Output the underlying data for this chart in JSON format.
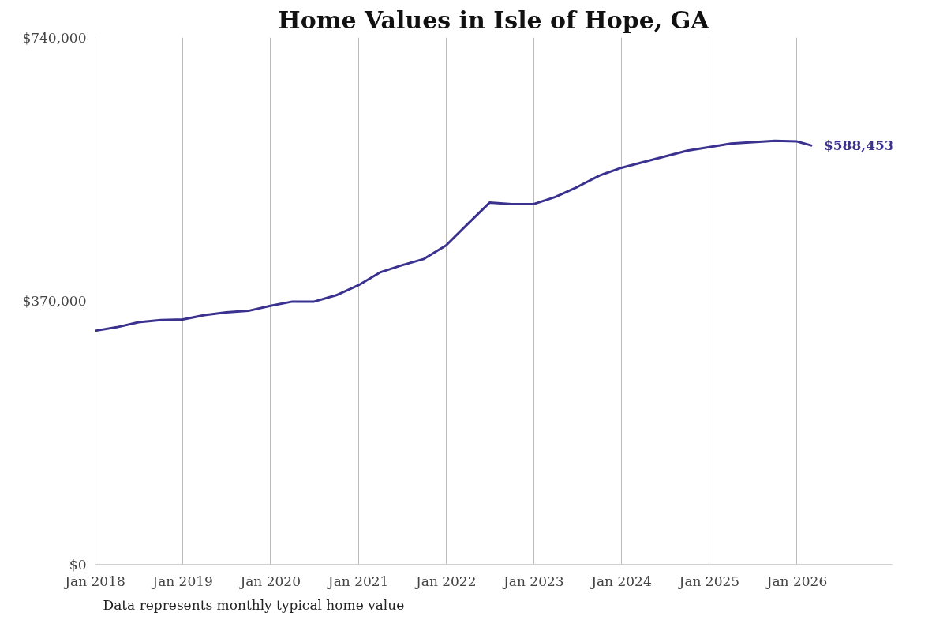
{
  "chart_data": {
    "type": "line",
    "title": "Home Values in Isle of Hope, GA",
    "x": [
      "2018-01",
      "2018-04",
      "2018-07",
      "2018-10",
      "2019-01",
      "2019-04",
      "2019-07",
      "2019-10",
      "2020-01",
      "2020-04",
      "2020-07",
      "2020-10",
      "2021-01",
      "2021-04",
      "2021-07",
      "2021-10",
      "2022-01",
      "2022-04",
      "2022-07",
      "2022-10",
      "2023-01",
      "2023-04",
      "2023-07",
      "2023-10",
      "2024-01",
      "2024-04",
      "2024-07",
      "2024-10",
      "2025-01",
      "2025-04",
      "2025-07",
      "2025-10",
      "2026-01",
      "2026-03"
    ],
    "series": [
      {
        "color": "#3b3290",
        "values": [
          328000,
          333000,
          340000,
          343000,
          344000,
          350000,
          354000,
          356000,
          363000,
          369000,
          369000,
          378000,
          392000,
          410000,
          420000,
          429000,
          448000,
          478000,
          508000,
          506000,
          506000,
          516000,
          530000,
          546000,
          557000,
          565000,
          573000,
          581000,
          586000,
          591000,
          593000,
          595000,
          594000,
          588453
        ]
      }
    ],
    "annotations": [
      {
        "text": "$588,453",
        "x": "2026-03",
        "y": 588453
      },
      "Data represents monthly typical home value"
    ],
    "xlim": [
      "2018-01",
      "2027-02"
    ],
    "xticks": [
      {
        "value": "2018-01",
        "label": "Jan 2018"
      },
      {
        "value": "2019-01",
        "label": "Jan 2019"
      },
      {
        "value": "2020-01",
        "label": "Jan 2020"
      },
      {
        "value": "2021-01",
        "label": "Jan 2021"
      },
      {
        "value": "2022-01",
        "label": "Jan 2022"
      },
      {
        "value": "2023-01",
        "label": "Jan 2023"
      },
      {
        "value": "2024-01",
        "label": "Jan 2024"
      },
      {
        "value": "2025-01",
        "label": "Jan 2025"
      },
      {
        "value": "2026-01",
        "label": "Jan 2026"
      }
    ],
    "ylim": [
      0,
      740000
    ],
    "yticks": [
      {
        "value": 0,
        "label": "$0"
      },
      {
        "value": 370000,
        "label": "$370,000"
      },
      {
        "value": 740000,
        "label": "$740,000"
      }
    ],
    "grid": "x",
    "marker": "none",
    "line_style": "solid"
  }
}
